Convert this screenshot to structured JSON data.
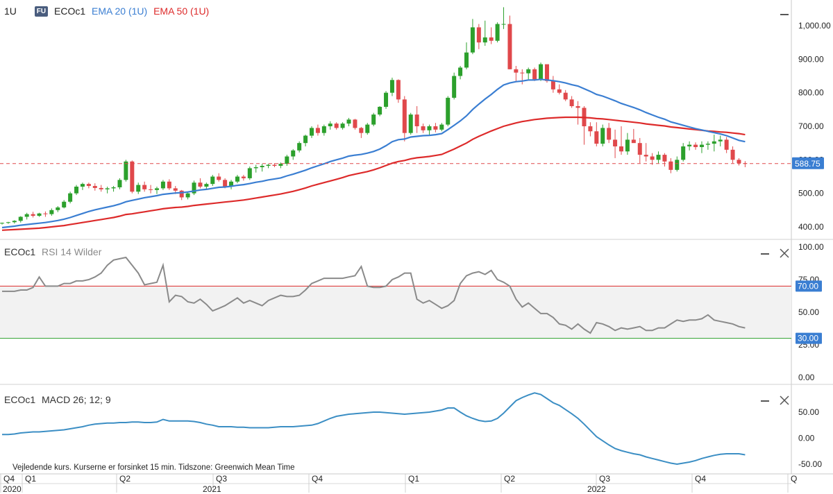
{
  "toolbar": {
    "interval": "1U",
    "badge": "FU",
    "symbol": "ECOc1",
    "ema20_label": "EMA 20 (1U)",
    "ema50_label": "EMA 50 (1U)"
  },
  "colors": {
    "up": "#2ca02c",
    "down": "#e0484b",
    "ema20": "#3a7ed2",
    "ema50": "#dd2a2a",
    "rsi": "#8a8a8a",
    "macd": "#3b8ec4",
    "last_price_tag": "#3a7ed2",
    "rsi_upper": "#dd2a2a",
    "rsi_lower": "#2ca02c"
  },
  "rsi_panel": {
    "label": "ECOc1",
    "indicator": "RSI 14 Wilder"
  },
  "macd_panel": {
    "label": "ECOc1",
    "indicator": "MACD 26; 12; 9"
  },
  "footer_note": "Vejledende kurs. Kurserne er forsinket 15 min.   Tidszone: Greenwich Mean Time",
  "chart_data": [
    {
      "type": "candlestick",
      "yticks": [
        "1,000.00",
        "900.00",
        "800.00",
        "700.00",
        "600.00",
        "500.00",
        "400.00"
      ],
      "ylim": [
        385,
        1065
      ],
      "last_price": 588.75,
      "last_price_label": "588.75",
      "candles": [
        [
          410,
          413,
          407,
          412
        ],
        [
          412,
          415,
          409,
          414
        ],
        [
          414,
          420,
          410,
          418
        ],
        [
          418,
          432,
          413,
          430
        ],
        [
          430,
          442,
          422,
          438
        ],
        [
          438,
          445,
          428,
          433
        ],
        [
          433,
          442,
          430,
          440
        ],
        [
          440,
          446,
          430,
          438
        ],
        [
          438,
          455,
          433,
          450
        ],
        [
          450,
          462,
          444,
          458
        ],
        [
          458,
          480,
          455,
          475
        ],
        [
          475,
          505,
          470,
          500
        ],
        [
          500,
          525,
          495,
          520
        ],
        [
          520,
          532,
          510,
          528
        ],
        [
          528,
          532,
          515,
          522
        ],
        [
          522,
          530,
          508,
          516
        ],
        [
          516,
          525,
          505,
          512
        ],
        [
          512,
          520,
          500,
          515
        ],
        [
          515,
          522,
          505,
          518
        ],
        [
          518,
          545,
          512,
          540
        ],
        [
          540,
          600,
          535,
          595
        ],
        [
          595,
          598,
          500,
          505
        ],
        [
          505,
          532,
          498,
          525
        ],
        [
          525,
          535,
          505,
          512
        ],
        [
          512,
          525,
          500,
          510
        ],
        [
          510,
          520,
          498,
          515
        ],
        [
          515,
          540,
          510,
          535
        ],
        [
          535,
          542,
          510,
          515
        ],
        [
          515,
          522,
          498,
          508
        ],
        [
          508,
          510,
          480,
          488
        ],
        [
          488,
          505,
          482,
          500
        ],
        [
          500,
          538,
          495,
          532
        ],
        [
          532,
          545,
          515,
          520
        ],
        [
          520,
          532,
          512,
          528
        ],
        [
          528,
          555,
          522,
          550
        ],
        [
          550,
          560,
          535,
          540
        ],
        [
          540,
          545,
          515,
          520
        ],
        [
          520,
          540,
          512,
          535
        ],
        [
          535,
          555,
          530,
          550
        ],
        [
          550,
          555,
          538,
          545
        ],
        [
          545,
          580,
          540,
          575
        ],
        [
          575,
          585,
          562,
          578
        ],
        [
          578,
          588,
          565,
          582
        ],
        [
          582,
          588,
          575,
          585
        ],
        [
          585,
          590,
          578,
          582
        ],
        [
          582,
          592,
          575,
          588
        ],
        [
          588,
          615,
          582,
          610
        ],
        [
          610,
          632,
          600,
          628
        ],
        [
          628,
          655,
          622,
          650
        ],
        [
          650,
          675,
          640,
          672
        ],
        [
          672,
          700,
          665,
          695
        ],
        [
          695,
          705,
          672,
          680
        ],
        [
          680,
          705,
          672,
          700
        ],
        [
          700,
          715,
          690,
          708
        ],
        [
          708,
          712,
          690,
          695
        ],
        [
          695,
          712,
          690,
          708
        ],
        [
          708,
          725,
          700,
          720
        ],
        [
          720,
          722,
          690,
          695
        ],
        [
          695,
          698,
          665,
          680
        ],
        [
          680,
          710,
          675,
          705
        ],
        [
          705,
          740,
          700,
          735
        ],
        [
          735,
          760,
          730,
          758
        ],
        [
          758,
          805,
          752,
          800
        ],
        [
          800,
          845,
          790,
          838
        ],
        [
          838,
          840,
          770,
          780
        ],
        [
          780,
          790,
          655,
          680
        ],
        [
          680,
          740,
          675,
          735
        ],
        [
          735,
          760,
          680,
          700
        ],
        [
          700,
          708,
          680,
          688
        ],
        [
          688,
          705,
          675,
          700
        ],
        [
          700,
          710,
          682,
          690
        ],
        [
          690,
          710,
          685,
          705
        ],
        [
          705,
          790,
          700,
          785
        ],
        [
          785,
          860,
          780,
          850
        ],
        [
          850,
          880,
          840,
          875
        ],
        [
          875,
          950,
          870,
          920
        ],
        [
          920,
          1020,
          915,
          995
        ],
        [
          995,
          1005,
          930,
          950
        ],
        [
          950,
          1015,
          940,
          965
        ],
        [
          965,
          995,
          945,
          955
        ],
        [
          955,
          1010,
          950,
          1005
        ],
        [
          1005,
          1055,
          990,
          1005
        ],
        [
          1005,
          1030,
          870,
          870
        ],
        [
          870,
          880,
          835,
          860
        ],
        [
          860,
          870,
          825,
          858
        ],
        [
          858,
          875,
          840,
          870
        ],
        [
          870,
          875,
          835,
          840
        ],
        [
          840,
          890,
          835,
          885
        ],
        [
          885,
          880,
          830,
          835
        ],
        [
          835,
          850,
          800,
          810
        ],
        [
          810,
          825,
          795,
          800
        ],
        [
          800,
          808,
          775,
          780
        ],
        [
          780,
          790,
          755,
          760
        ],
        [
          760,
          775,
          705,
          755
        ],
        [
          755,
          760,
          645,
          700
        ],
        [
          700,
          712,
          670,
          685
        ],
        [
          685,
          712,
          640,
          648
        ],
        [
          648,
          705,
          640,
          695
        ],
        [
          695,
          710,
          650,
          660
        ],
        [
          660,
          690,
          605,
          640
        ],
        [
          640,
          700,
          615,
          625
        ],
        [
          625,
          680,
          615,
          660
        ],
        [
          660,
          692,
          655,
          650
        ],
        [
          650,
          665,
          590,
          615
        ],
        [
          615,
          650,
          595,
          610
        ],
        [
          610,
          620,
          585,
          600
        ],
        [
          600,
          625,
          590,
          615
        ],
        [
          615,
          620,
          580,
          595
        ],
        [
          595,
          605,
          560,
          570
        ],
        [
          570,
          610,
          565,
          600
        ],
        [
          600,
          650,
          595,
          640
        ],
        [
          640,
          655,
          628,
          645
        ],
        [
          645,
          652,
          630,
          638
        ],
        [
          638,
          655,
          620,
          645
        ],
        [
          645,
          655,
          630,
          648
        ],
        [
          648,
          675,
          625,
          655
        ],
        [
          655,
          672,
          640,
          660
        ],
        [
          660,
          668,
          620,
          630
        ],
        [
          630,
          640,
          590,
          600
        ],
        [
          600,
          605,
          583,
          590
        ],
        [
          590,
          596,
          578,
          588.75
        ]
      ],
      "ema20": [
        398,
        400,
        402,
        405,
        407,
        409,
        411,
        413,
        416,
        419,
        423,
        428,
        434,
        440,
        446,
        451,
        455,
        459,
        463,
        468,
        475,
        479,
        483,
        487,
        490,
        493,
        497,
        499,
        501,
        502,
        504,
        507,
        510,
        512,
        515,
        518,
        519,
        521,
        524,
        526,
        529,
        533,
        536,
        540,
        543,
        546,
        552,
        557,
        563,
        569,
        576,
        582,
        588,
        595,
        600,
        605,
        611,
        614,
        616,
        620,
        625,
        632,
        642,
        654,
        660,
        662,
        668,
        670,
        672,
        673,
        675,
        678,
        690,
        703,
        716,
        731,
        750,
        766,
        781,
        795,
        810,
        823,
        829,
        833,
        835,
        838,
        838,
        840,
        838,
        836,
        833,
        829,
        824,
        820,
        812,
        804,
        795,
        790,
        783,
        776,
        768,
        762,
        756,
        749,
        741,
        734,
        727,
        721,
        713,
        708,
        703,
        698,
        693,
        689,
        685,
        681,
        677,
        672,
        665,
        658,
        654
      ],
      "ema50": [
        390,
        391,
        392,
        393,
        394,
        395,
        396,
        398,
        400,
        402,
        404,
        407,
        410,
        413,
        416,
        419,
        422,
        425,
        428,
        432,
        437,
        439,
        442,
        445,
        448,
        451,
        454,
        456,
        458,
        459,
        461,
        464,
        466,
        468,
        470,
        472,
        474,
        476,
        478,
        480,
        483,
        486,
        489,
        492,
        495,
        498,
        502,
        506,
        511,
        516,
        522,
        527,
        532,
        537,
        542,
        547,
        553,
        557,
        561,
        565,
        570,
        576,
        583,
        590,
        595,
        598,
        603,
        606,
        608,
        610,
        613,
        616,
        624,
        632,
        641,
        650,
        661,
        670,
        678,
        686,
        693,
        700,
        705,
        710,
        714,
        717,
        720,
        722,
        724,
        725,
        726,
        727,
        727,
        727,
        726,
        725,
        723,
        722,
        720,
        718,
        716,
        714,
        712,
        710,
        707,
        705,
        703,
        701,
        698,
        696,
        694,
        692,
        690,
        688,
        686,
        685,
        683,
        682,
        680,
        678,
        675
      ]
    },
    {
      "type": "line",
      "name": "RSI 14 Wilder",
      "yticks": [
        "100.00",
        "75.00",
        "50.00",
        "25.00",
        "0.00"
      ],
      "ylim": [
        0,
        100
      ],
      "overbought_label": "70.00",
      "oversold_label": "30.00",
      "overbought": 70,
      "oversold": 30,
      "values": [
        66,
        66,
        66,
        67,
        67,
        69,
        77,
        70,
        70,
        70,
        72,
        72,
        74,
        74,
        75,
        77,
        80,
        86,
        90,
        91,
        92,
        86,
        80,
        71,
        72,
        73,
        86,
        58,
        63,
        62,
        58,
        57,
        60,
        56,
        51,
        53,
        55,
        58,
        61,
        57,
        59,
        57,
        55,
        59,
        61,
        63,
        62,
        62,
        63,
        67,
        72,
        74,
        76,
        76,
        76,
        76,
        77,
        78,
        85,
        70,
        69,
        69,
        70,
        75,
        77,
        80,
        80,
        60,
        57,
        59,
        56,
        53,
        55,
        59,
        72,
        78,
        80,
        81,
        79,
        82,
        75,
        73,
        70,
        60,
        54,
        57,
        53,
        49,
        49,
        46,
        41,
        40,
        37,
        41,
        37,
        34,
        42,
        41,
        39,
        36,
        38,
        37,
        38,
        39,
        36,
        36,
        38,
        38,
        41,
        44,
        43,
        44,
        44,
        45,
        48,
        44,
        43,
        42,
        41,
        39,
        38
      ]
    },
    {
      "type": "line",
      "name": "MACD 26; 12; 9",
      "yticks": [
        "50.00",
        "0.00",
        "-50.00"
      ],
      "ylim": [
        -62,
        93
      ],
      "values": [
        7,
        7,
        8,
        10,
        11,
        12,
        12,
        13,
        14,
        15,
        16,
        18,
        20,
        22,
        25,
        27,
        28,
        29,
        29,
        30,
        30,
        31,
        31,
        30,
        30,
        31,
        36,
        33,
        33,
        33,
        33,
        32,
        30,
        27,
        25,
        22,
        22,
        22,
        21,
        21,
        20,
        20,
        20,
        20,
        21,
        22,
        22,
        22,
        23,
        24,
        25,
        28,
        33,
        38,
        42,
        44,
        46,
        47,
        48,
        49,
        50,
        50,
        49,
        48,
        47,
        46,
        47,
        48,
        49,
        50,
        52,
        54,
        58,
        58,
        50,
        43,
        38,
        34,
        32,
        33,
        38,
        48,
        60,
        72,
        78,
        83,
        87,
        84,
        76,
        68,
        63,
        55,
        47,
        38,
        27,
        15,
        3,
        -5,
        -13,
        -20,
        -24,
        -27,
        -30,
        -32,
        -36,
        -39,
        -42,
        -45,
        -48,
        -50,
        -48,
        -46,
        -43,
        -39,
        -36,
        -33,
        -31,
        -30,
        -30,
        -30,
        -32
      ]
    }
  ],
  "time_axis": {
    "quarters": [
      {
        "label": "Q4",
        "i": 0
      },
      {
        "label": "Q1",
        "i": 3
      },
      {
        "label": "Q2",
        "i": 15
      },
      {
        "label": "Q3",
        "i": 28
      },
      {
        "label": "Q4",
        "i": 41
      },
      {
        "label": "Q1",
        "i": 54
      },
      {
        "label": "Q2",
        "i": 67
      },
      {
        "label": "Q3",
        "i": 80
      },
      {
        "label": "Q4",
        "i": 93
      },
      {
        "label": "Q",
        "i": 106
      }
    ],
    "years": [
      {
        "label": "2020",
        "i": 0
      },
      {
        "label": "2021",
        "i": 28
      },
      {
        "label": "2022",
        "i": 80
      }
    ]
  }
}
